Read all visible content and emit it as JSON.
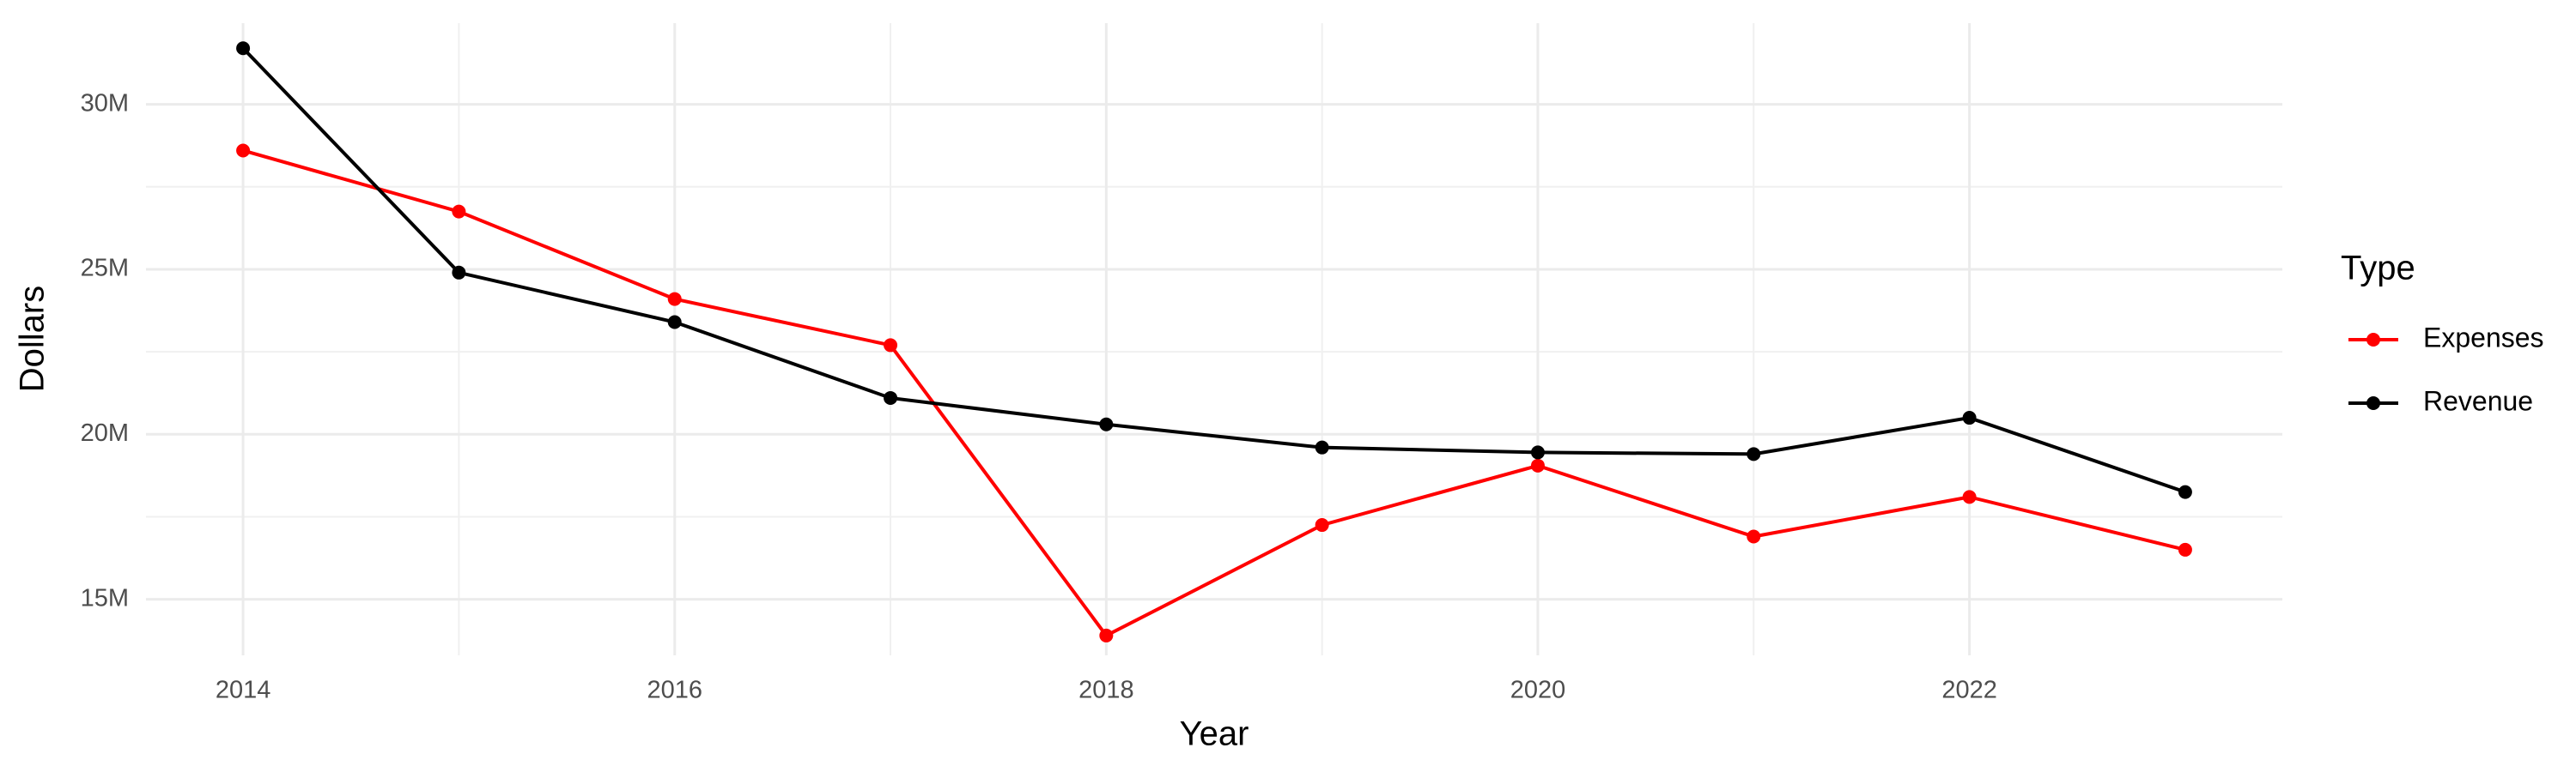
{
  "chart_data": {
    "type": "line",
    "x_label": "Year",
    "y_label": "Dollars",
    "x": [
      2014,
      2015,
      2016,
      2017,
      2018,
      2019,
      2020,
      2021,
      2022,
      2023
    ],
    "series": [
      {
        "name": "Expenses",
        "color": "#ff0000",
        "values": [
          28600000,
          26750000,
          24100000,
          22700000,
          13900000,
          17250000,
          19050000,
          16900000,
          18100000,
          16500000
        ]
      },
      {
        "name": "Revenue",
        "color": "#000000",
        "values": [
          31700000,
          24900000,
          23400000,
          21100000,
          20300000,
          19600000,
          19450000,
          19400000,
          20500000,
          18250000
        ]
      }
    ],
    "legend_title": "Type",
    "legend_position": "right",
    "xlim": [
      2013.55,
      2023.45
    ],
    "xticks": [
      2014,
      2016,
      2018,
      2020,
      2022
    ],
    "ylim": [
      13300000,
      32460000
    ],
    "yticks": [
      {
        "value": 15000000,
        "label": "15M"
      },
      {
        "value": 20000000,
        "label": "20M"
      },
      {
        "value": 25000000,
        "label": "25M"
      },
      {
        "value": 30000000,
        "label": "30M"
      }
    ],
    "grid": true
  }
}
